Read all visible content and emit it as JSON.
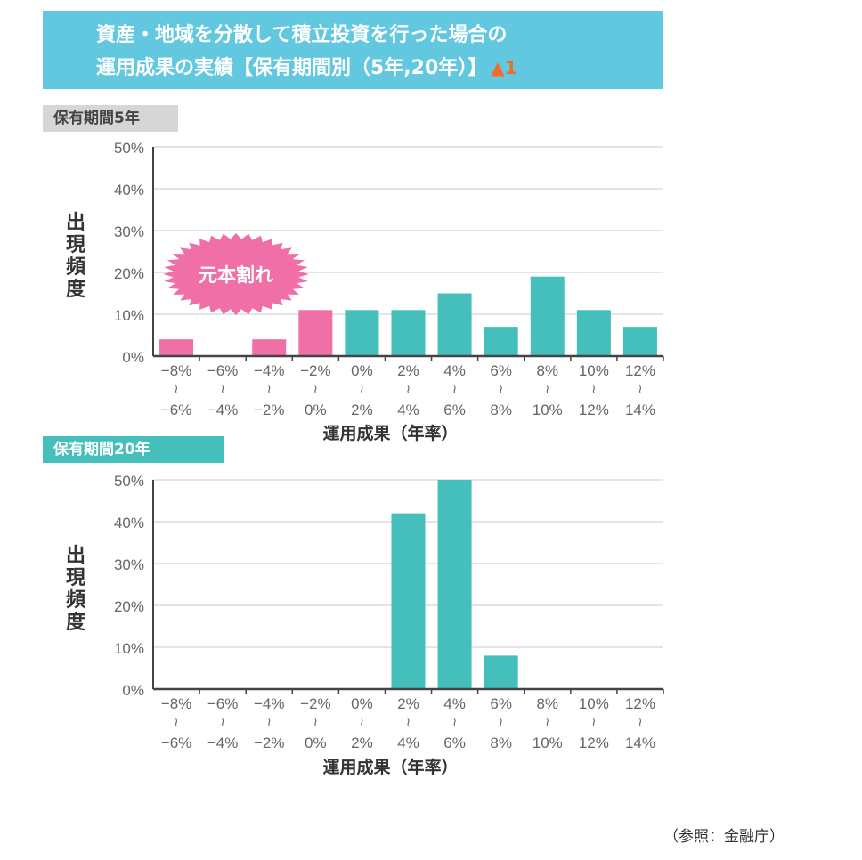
{
  "header": {
    "title_line1": "資産・地域を分散して積立投資を行った場合の",
    "title_line2": "運用成果の実績【保有期間別（5年,20年）】",
    "warning_icon": "warning-triangle-icon",
    "warning_note": "1",
    "background_color": "#62c8e0"
  },
  "source": "（参照：金融庁）",
  "colors": {
    "loss": "#f06fa6",
    "gain": "#45bfbb"
  },
  "chart_data": [
    {
      "type": "bar",
      "panel_label": "保有期間5年",
      "ylabel": [
        "出",
        "現",
        "頻",
        "度"
      ],
      "xlabel": "運用成果（年率）",
      "ylim": [
        0,
        50
      ],
      "yticks": [
        "0%",
        "10%",
        "20%",
        "30%",
        "40%",
        "50%"
      ],
      "grid": true,
      "annotation": "元本割れ",
      "categories": [
        {
          "from": "−8%",
          "to": "−6%"
        },
        {
          "from": "−6%",
          "to": "−4%"
        },
        {
          "from": "−4%",
          "to": "−2%"
        },
        {
          "from": "−2%",
          "to": "0%"
        },
        {
          "from": "0%",
          "to": "2%"
        },
        {
          "from": "2%",
          "to": "4%"
        },
        {
          "from": "4%",
          "to": "6%"
        },
        {
          "from": "6%",
          "to": "8%"
        },
        {
          "from": "8%",
          "to": "10%"
        },
        {
          "from": "10%",
          "to": "12%"
        },
        {
          "from": "12%",
          "to": "14%"
        }
      ],
      "range_separator": "≀",
      "values": [
        4,
        0,
        4,
        11,
        11,
        11,
        15,
        7,
        19,
        11,
        7
      ],
      "loss_categories_count": 4
    },
    {
      "type": "bar",
      "panel_label": "保有期間20年",
      "ylabel": [
        "出",
        "現",
        "頻",
        "度"
      ],
      "xlabel": "運用成果（年率）",
      "ylim": [
        0,
        50
      ],
      "yticks": [
        "0%",
        "10%",
        "20%",
        "30%",
        "40%",
        "50%"
      ],
      "grid": true,
      "categories": [
        {
          "from": "−8%",
          "to": "−6%"
        },
        {
          "from": "−6%",
          "to": "−4%"
        },
        {
          "from": "−4%",
          "to": "−2%"
        },
        {
          "from": "−2%",
          "to": "0%"
        },
        {
          "from": "0%",
          "to": "2%"
        },
        {
          "from": "2%",
          "to": "4%"
        },
        {
          "from": "4%",
          "to": "6%"
        },
        {
          "from": "6%",
          "to": "8%"
        },
        {
          "from": "8%",
          "to": "10%"
        },
        {
          "from": "10%",
          "to": "12%"
        },
        {
          "from": "12%",
          "to": "14%"
        }
      ],
      "range_separator": "≀",
      "values": [
        0,
        0,
        0,
        0,
        0,
        42,
        50,
        8,
        0,
        0,
        0
      ],
      "loss_categories_count": 4
    }
  ]
}
